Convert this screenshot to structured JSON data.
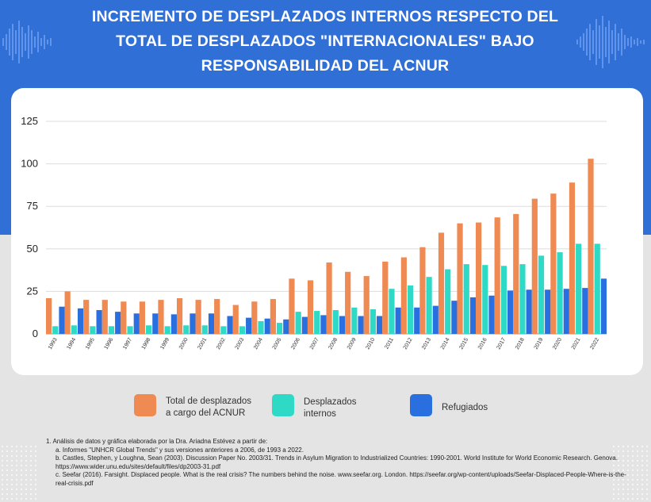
{
  "title": "INCREMENTO DE DESPLAZADOS INTERNOS RESPECTO DEL TOTAL DE DESPLAZADOS \"INTERNACIONALES\" BAJO RESPONSABILIDAD DEL ACNUR",
  "colors": {
    "total": "#ef8a52",
    "internos": "#2edac6",
    "refugiados": "#2a6fe0",
    "header": "#2f6fd6"
  },
  "legend": [
    {
      "label": "Total de desplazados\na cargo del ACNUR",
      "color": "#ef8a52"
    },
    {
      "label": "Desplazados\ninternos",
      "color": "#2edac6"
    },
    {
      "label": "Refugiados",
      "color": "#2a6fe0"
    }
  ],
  "notes": {
    "n1": "1. Análisis de datos y gráfica elaborada por la Dra. Ariadna Estévez a partir de:",
    "a": "a. Informes \"UNHCR Global Trends\" y sus versiones anteriores a 2006, de 1993 a 2022.",
    "b": "b. Castles, Stephen, y Loughna, Sean (2003). Discussion Paper No. 2003/31. Trends in Asylum Migration to Industrialized Countries: 1990-2001. World Institute for World Economic Research. Genova. https://www.wider.unu.edu/sites/default/files/dp2003-31.pdf",
    "c": "c. Seefar (2016). Farsight. Displaced people. What is the real crisis? The numbers behind the noise.  www.seefar.org. London. https://seefar.org/wp-content/uploads/Seefar-Displaced-People-Where-is-the-real-crisis.pdf"
  },
  "chart_data": {
    "type": "bar",
    "title": "INCREMENTO DE DESPLAZADOS INTERNOS RESPECTO DEL TOTAL DE DESPLAZADOS \"INTERNACIONALES\" BAJO RESPONSABILIDAD DEL ACNUR",
    "xlabel": "",
    "ylabel": "",
    "ylim": [
      0,
      125
    ],
    "yticks": [
      0,
      25,
      50,
      75,
      100,
      125
    ],
    "categories": [
      "1993",
      "1994",
      "1995",
      "1996",
      "1997",
      "1998",
      "1999",
      "2000",
      "2001",
      "2002",
      "2003",
      "2004",
      "2005",
      "2006",
      "2007",
      "2008",
      "2009",
      "2010",
      "2011",
      "2012",
      "2013",
      "2014",
      "2015",
      "2016",
      "2017",
      "2018",
      "2019",
      "2020",
      "2021",
      "2022"
    ],
    "series": [
      {
        "name": "Total de desplazados a cargo del ACNUR",
        "values": [
          21,
          25,
          20,
          20,
          19,
          19,
          20,
          21,
          20,
          20.5,
          17,
          19,
          20.5,
          32.5,
          31.5,
          42,
          36.5,
          34,
          42.5,
          45,
          51,
          59.5,
          65,
          65.5,
          68.5,
          70.5,
          79.5,
          82.5,
          89,
          103
        ]
      },
      {
        "name": "Desplazados internos",
        "values": [
          4.5,
          5,
          4.5,
          4.5,
          4.5,
          5,
          4.5,
          5,
          5,
          4.5,
          4.5,
          7.5,
          6.5,
          13,
          13.5,
          14,
          15.5,
          14.5,
          26.5,
          28.5,
          33.5,
          38,
          41,
          40.5,
          40,
          41,
          46,
          48,
          53,
          53
        ]
      },
      {
        "name": "Refugiados",
        "values": [
          16,
          15,
          14,
          13,
          12,
          12,
          11.5,
          12,
          12,
          10.5,
          9.5,
          9,
          8.5,
          10,
          11,
          10.5,
          10.5,
          10.5,
          15.5,
          15.5,
          16.5,
          19.5,
          21.5,
          22.5,
          25.5,
          26,
          26,
          26.5,
          27,
          32.5
        ]
      }
    ]
  }
}
